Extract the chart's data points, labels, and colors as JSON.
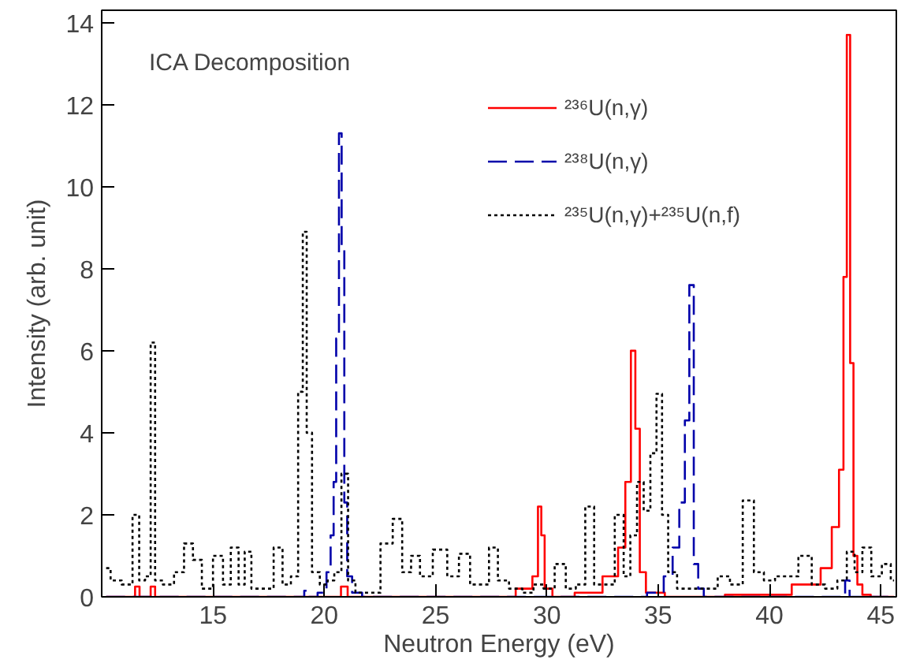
{
  "chart_data": {
    "type": "step",
    "xlabel": "Neutron Energy (eV)",
    "ylabel": "Intensity (arb. unit)",
    "annotations": [
      "ICA Decomposition"
    ],
    "xlim": [
      10,
      45.7
    ],
    "ylim": [
      0,
      14.3
    ],
    "xticks": [
      15,
      20,
      25,
      30,
      35,
      40,
      45
    ],
    "yticks": [
      0,
      2,
      4,
      6,
      8,
      10,
      12,
      14
    ],
    "grid": false,
    "legend": "top right",
    "marker": "none",
    "series": [
      {
        "name": "²³⁶U(n,γ)",
        "color": "#ff0000",
        "line_style": "solid",
        "x": [
          10.2,
          11.4,
          11.6,
          11.8,
          12.1,
          12.3,
          12.5,
          13,
          20.6,
          20.9,
          21.2,
          28,
          29.2,
          29.5,
          29.7,
          29.8,
          30,
          30.5,
          32,
          33,
          33.4,
          33.65,
          33.9,
          34.05,
          34.3,
          34.6,
          36,
          40,
          42,
          42.6,
          43,
          43.25,
          43.4,
          43.55,
          43.7,
          43.85,
          44.05,
          44.3,
          44.8,
          45.6
        ],
        "values": [
          0,
          0,
          0.25,
          0,
          0,
          0.25,
          0,
          0,
          0,
          0.25,
          0,
          0,
          0.2,
          0.5,
          2.2,
          1.5,
          0.2,
          0,
          0.1,
          0.5,
          1.2,
          2.8,
          6.0,
          4.1,
          0.6,
          0.1,
          0,
          0.05,
          0.3,
          0.7,
          1.7,
          3.1,
          7.8,
          13.7,
          5.7,
          1.0,
          0.3,
          0.05,
          0,
          0
        ]
      },
      {
        "name": "²³⁸U(n,γ)",
        "color": "#0000aa",
        "line_style": "dashed",
        "x": [
          10.2,
          19,
          19.2,
          19.4,
          20,
          20.2,
          20.37,
          20.47,
          20.6,
          20.72,
          20.84,
          20.96,
          21.1,
          21.4,
          22,
          34,
          35,
          35.5,
          35.8,
          36.1,
          36.3,
          36.5,
          36.7,
          36.9,
          37.2,
          38,
          43.3,
          43.5,
          43.7,
          45.6
        ],
        "values": [
          0,
          0,
          0.15,
          0,
          0.1,
          0.6,
          1.5,
          2.8,
          6.3,
          11.3,
          8.5,
          2.3,
          0.5,
          0.1,
          0,
          0,
          0.1,
          0.5,
          1.2,
          2.3,
          4.3,
          7.6,
          0.8,
          0.2,
          0,
          0,
          0,
          0.4,
          0,
          0
        ]
      },
      {
        "name": "²³⁵U(n,γ)+²³⁵U(n,f)",
        "color": "#000000",
        "line_style": "dotted",
        "x": [
          10.2,
          10.6,
          11.2,
          11.57,
          11.8,
          12.1,
          12.3,
          12.5,
          13,
          13.5,
          13.9,
          14.3,
          14.7,
          15.3,
          15.6,
          16.0,
          16.3,
          16.55,
          16.9,
          17.5,
          17.95,
          18.3,
          18.7,
          18.95,
          19.12,
          19.3,
          19.6,
          20.0,
          20.3,
          20.6,
          20.94,
          21.2,
          21.6,
          22.2,
          22.85,
          23.3,
          23.7,
          24.1,
          24.5,
          25.25,
          25.8,
          26.3,
          26.8,
          27.2,
          27.6,
          28,
          28.6,
          29.2,
          29.6,
          30.1,
          30.6,
          31.1,
          31.5,
          31.95,
          32.3,
          32.8,
          33.3,
          33.6,
          33.9,
          34.2,
          34.5,
          34.8,
          35.05,
          35.3,
          35.6,
          36.1,
          36.8,
          37.4,
          37.95,
          38.5,
          39.1,
          39.5,
          40,
          40.5,
          41,
          41.6,
          42.2,
          42.8,
          43.3,
          43.65,
          44,
          44.35,
          44.8,
          45.3,
          45.6
        ],
        "values": [
          0.7,
          0.4,
          0.3,
          2.0,
          0.4,
          0.5,
          6.2,
          0.4,
          0.3,
          0.6,
          1.3,
          0.9,
          0.2,
          1.0,
          0.3,
          1.2,
          0.3,
          1.1,
          0.2,
          0.2,
          1.2,
          0.3,
          0.5,
          5.0,
          8.9,
          4.0,
          0.6,
          0.3,
          0.4,
          0.6,
          3.0,
          0.4,
          0.1,
          0.1,
          1.3,
          1.9,
          0.6,
          1.0,
          0.5,
          1.15,
          0.5,
          1.05,
          0.3,
          0.3,
          1.2,
          0.4,
          0.2,
          0.1,
          0.3,
          0.2,
          0.8,
          0.2,
          0.3,
          2.2,
          0.3,
          0.3,
          2.0,
          0.5,
          1.5,
          2.8,
          2.1,
          3.5,
          4.95,
          2.0,
          0.6,
          0.2,
          0.2,
          0.2,
          0.5,
          0.3,
          2.35,
          0.6,
          0.4,
          0.5,
          0.5,
          1.0,
          0.3,
          0.2,
          0.4,
          1.1,
          0.6,
          1.2,
          0.5,
          0.8,
          0.4
        ]
      }
    ]
  }
}
